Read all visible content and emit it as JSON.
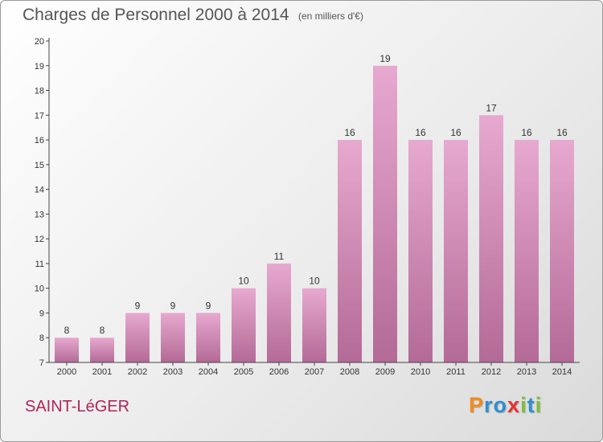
{
  "header": {
    "title": "Charges de Personnel 2000 à 2014",
    "subtitle": "(en milliers d'€)"
  },
  "footer": {
    "commune": "SAINT-LéGER",
    "brand": "Proxiti",
    "brand_letters": [
      "P",
      "r",
      "o",
      "x",
      "i",
      "t",
      "i"
    ],
    "brand_colors": [
      "#f28c1e",
      "#2f8fd0",
      "#2f8fd0",
      "#e8322f",
      "#7bbf3a",
      "#2f8fd0",
      "#7bbf3a"
    ]
  },
  "colors": {
    "bar_top": "#e7a9d0",
    "bar_bottom": "#b36a96",
    "axis": "#444444",
    "text": "#333333"
  },
  "chart_data": {
    "type": "bar",
    "categories": [
      "2000",
      "2001",
      "2002",
      "2003",
      "2004",
      "2005",
      "2006",
      "2007",
      "2008",
      "2009",
      "2010",
      "2011",
      "2012",
      "2013",
      "2014"
    ],
    "values": [
      8,
      8,
      9,
      9,
      9,
      10,
      11,
      10,
      16,
      19,
      16,
      16,
      17,
      16,
      16
    ],
    "ylim": [
      7,
      20
    ],
    "yticks": [
      7,
      8,
      9,
      10,
      11,
      12,
      13,
      14,
      15,
      16,
      17,
      18,
      19,
      20
    ],
    "grid": false,
    "data_labels": true
  }
}
